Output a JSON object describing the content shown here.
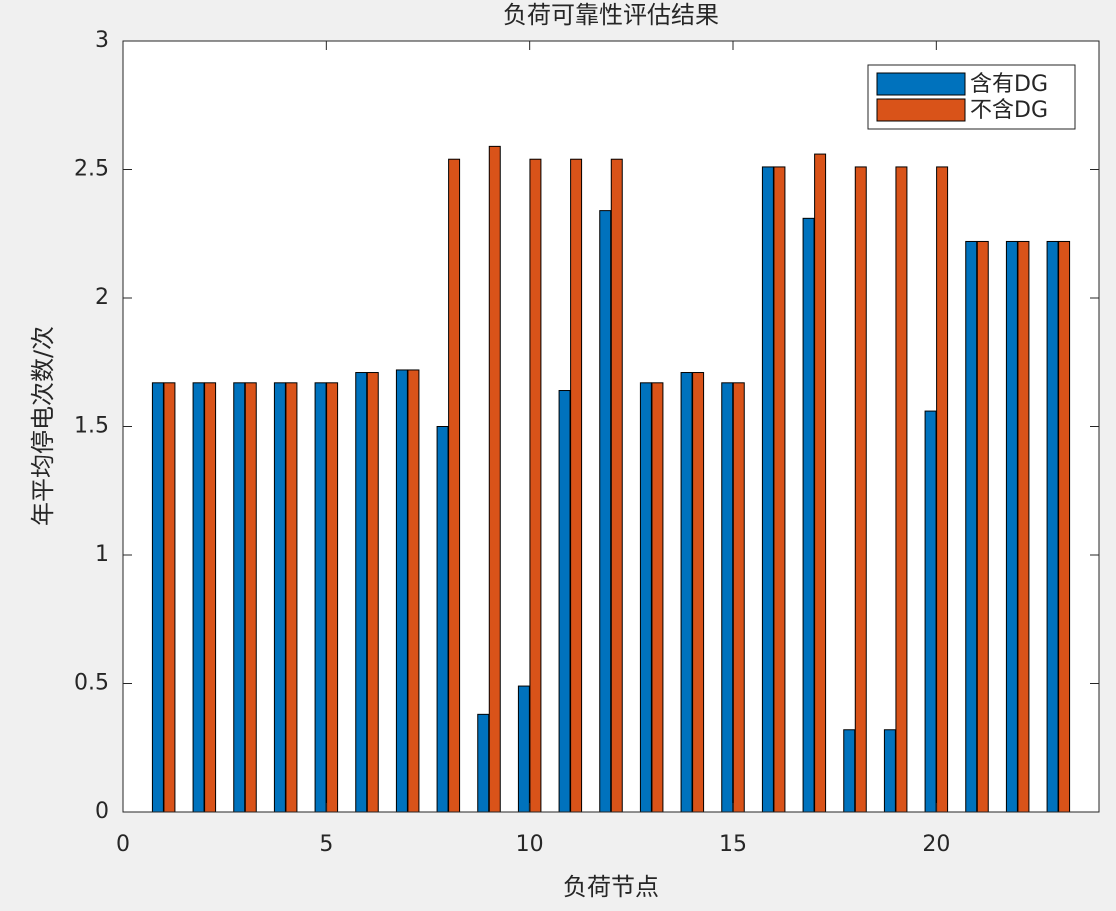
{
  "chart_data": {
    "type": "bar",
    "title": "负荷可靠性评估结果",
    "xlabel": "负荷节点",
    "ylabel": "年平均停电次数/次",
    "x": [
      1,
      2,
      3,
      4,
      5,
      6,
      7,
      8,
      9,
      10,
      11,
      12,
      13,
      14,
      15,
      16,
      17,
      18,
      19,
      20,
      21,
      22,
      23
    ],
    "series": [
      {
        "name": "含有DG",
        "color": "#0072bd",
        "values": [
          1.67,
          1.67,
          1.67,
          1.67,
          1.67,
          1.71,
          1.72,
          1.5,
          0.38,
          0.49,
          1.64,
          2.34,
          1.67,
          1.71,
          1.67,
          2.51,
          2.31,
          0.32,
          0.32,
          1.56,
          2.22,
          2.22,
          2.22
        ]
      },
      {
        "name": "不含DG",
        "color": "#d95319",
        "values": [
          1.67,
          1.67,
          1.67,
          1.67,
          1.67,
          1.71,
          1.72,
          2.54,
          2.59,
          2.54,
          2.54,
          2.54,
          1.67,
          1.71,
          1.67,
          2.51,
          2.56,
          2.51,
          2.51,
          2.51,
          2.22,
          2.22,
          2.22
        ]
      }
    ],
    "xlim": [
      0,
      24
    ],
    "xticks": [
      0,
      5,
      10,
      15,
      20
    ],
    "ylim": [
      0,
      3
    ],
    "yticks": [
      0,
      0.5,
      1,
      1.5,
      2,
      2.5,
      3
    ],
    "legend": "upper-right"
  }
}
